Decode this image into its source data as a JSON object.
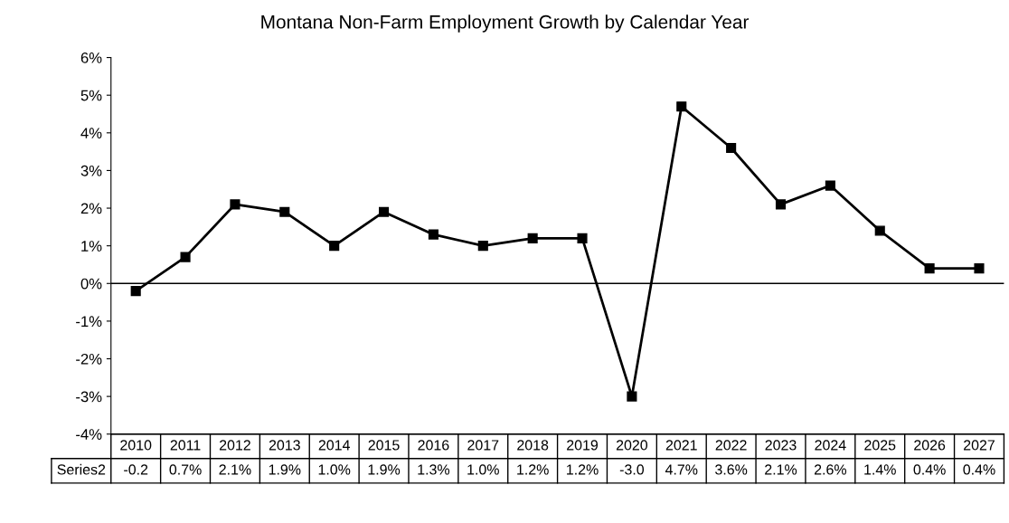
{
  "chart_data": {
    "type": "line",
    "title": "Montana Non-Farm Employment Growth by Calendar Year",
    "categories": [
      "2010",
      "2011",
      "2012",
      "2013",
      "2014",
      "2015",
      "2016",
      "2017",
      "2018",
      "2019",
      "2020",
      "2021",
      "2022",
      "2023",
      "2024",
      "2025",
      "2026",
      "2027"
    ],
    "series": [
      {
        "name": "Series2",
        "color": "#000000",
        "values": [
          -0.2,
          0.7,
          2.1,
          1.9,
          1.0,
          1.9,
          1.3,
          1.0,
          1.2,
          1.2,
          -3.0,
          4.7,
          3.6,
          2.1,
          2.6,
          1.4,
          0.4,
          0.4
        ],
        "value_labels": [
          "-0.2",
          "0.7%",
          "2.1%",
          "1.9%",
          "1.0%",
          "1.9%",
          "1.3%",
          "1.0%",
          "1.2%",
          "1.2%",
          "-3.0",
          "4.7%",
          "3.6%",
          "2.1%",
          "2.6%",
          "1.4%",
          "0.4%",
          "0.4%"
        ]
      }
    ],
    "ylim": [
      -4,
      6
    ],
    "yticks": [
      {
        "value": -4,
        "label": "-4%"
      },
      {
        "value": -3,
        "label": "-3%"
      },
      {
        "value": -2,
        "label": "-2%"
      },
      {
        "value": -1,
        "label": "-1%"
      },
      {
        "value": 0,
        "label": "0%"
      },
      {
        "value": 1,
        "label": "1%"
      },
      {
        "value": 2,
        "label": "2%"
      },
      {
        "value": 3,
        "label": "3%"
      },
      {
        "value": 4,
        "label": "4%"
      },
      {
        "value": 5,
        "label": "5%"
      },
      {
        "value": 6,
        "label": "6%"
      }
    ],
    "ref_lines": [
      {
        "axis": "y",
        "value": 0,
        "color": "#000000"
      }
    ],
    "grid": false,
    "legend": "bottom left",
    "marker": "square",
    "line_style": "solid"
  }
}
